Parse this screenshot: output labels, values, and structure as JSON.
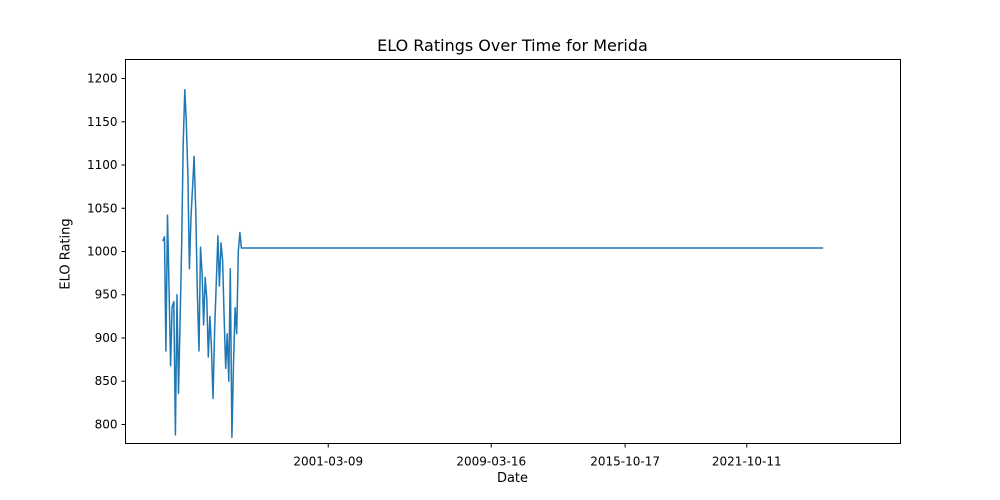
{
  "chart_data": {
    "type": "line",
    "title": "ELO Ratings Over Time for Merida",
    "xlabel": "Date",
    "ylabel": "ELO Rating",
    "x_tick_labels": [
      "2001-03-09",
      "2009-03-16",
      "2015-10-17",
      "2021-10-11"
    ],
    "y_ticks": [
      800,
      850,
      900,
      950,
      1000,
      1050,
      1100,
      1150,
      1200
    ],
    "xlim": [
      "1991-03-19",
      "2029-05-04"
    ],
    "ylim": [
      778,
      1222
    ],
    "grid": false,
    "legend": "none",
    "colors": {
      "line": "#1f77b4",
      "axes": "#000000",
      "background": "#ffffff"
    },
    "series": [
      {
        "x": [
          "1993-01-18",
          "1993-02-16",
          "1993-03-14",
          "1993-04-11",
          "1993-05-09",
          "1993-06-06",
          "1993-07-04",
          "1993-08-03",
          "1993-09-01",
          "1993-09-29",
          "1993-10-27",
          "1993-11-24",
          "1993-12-22",
          "1994-01-19",
          "1994-02-16",
          "1994-03-16",
          "1994-04-13",
          "1994-05-11",
          "1994-06-08",
          "1994-07-06",
          "1994-08-03",
          "1994-09-02",
          "1994-10-01",
          "1994-10-29",
          "1994-11-26",
          "1994-12-24",
          "1995-01-21",
          "1995-02-18",
          "1995-03-18",
          "1995-04-15",
          "1995-05-13",
          "1995-06-10",
          "1995-07-08",
          "1995-08-07",
          "1995-09-06",
          "1995-10-04",
          "1995-11-01",
          "1995-11-29",
          "1995-12-27",
          "1996-01-24",
          "1996-02-21",
          "1996-03-20",
          "1996-04-17",
          "1996-05-15",
          "1996-06-12",
          "1996-07-10",
          "1996-08-08",
          "1996-09-07",
          "1996-10-05",
          "1996-11-02",
          "1996-11-30",
          "1996-12-28",
          "1997-01-25",
          "1997-02-22",
          "1997-03-22",
          "1997-04-19",
          "1997-05-17",
          "1997-06-14",
          "1997-07-13",
          "1997-08-11",
          "1997-09-09",
          "1997-10-07",
          "1997-11-04",
          "1997-12-02",
          "1997-12-30",
          "1998-01-27",
          "1998-02-24",
          "1998-03-24",
          "1998-04-21",
          "1998-05-19",
          "1998-06-16",
          "1998-07-15",
          "1998-08-14",
          "1998-09-12",
          "1998-10-10",
          "1998-11-07",
          "1998-12-05",
          "1999-01-02",
          "1999-01-30",
          "1999-02-27",
          "1999-03-27",
          "1999-04-24",
          "1999-05-22",
          "1999-06-19",
          "1999-07-18",
          "1999-08-17",
          "1999-09-15",
          "1999-10-13",
          "1999-11-10",
          "1999-12-08",
          "2000-01-05",
          "2000-02-02",
          "2000-03-01",
          "2000-03-29",
          "2000-04-26",
          "2000-05-24",
          "2000-06-22",
          "2000-07-21",
          "2000-08-19",
          "2000-09-16",
          "2000-10-14",
          "2000-11-11",
          "2025-07-15"
        ],
        "y": [
          1012,
          1017,
          885,
          1042,
          960,
          868,
          936,
          942,
          788,
          950,
          836,
          920,
          1010,
          1125,
          1187,
          1150,
          1088,
          980,
          1040,
          1075,
          1110,
          1045,
          950,
          885,
          1005,
          975,
          915,
          970,
          945,
          878,
          925,
          890,
          830,
          912,
          965,
          1018,
          960,
          1010,
          990,
          925,
          865,
          905,
          850,
          980,
          785,
          870,
          935,
          905,
          1000,
          1022,
          1004,
          1004,
          1004,
          1004,
          1004,
          1004,
          1004,
          1004,
          1004,
          1004,
          1004,
          1004,
          1004,
          1004,
          1004,
          1004,
          1004,
          1004,
          1004,
          1004,
          1004,
          1004,
          1004,
          1004,
          1004,
          1004,
          1004,
          1004,
          1004,
          1004,
          1004,
          1004,
          1004,
          1004,
          1004,
          1004,
          1004,
          1004,
          1004,
          1004,
          1004,
          1004,
          1004,
          1004,
          1004,
          1004,
          1004,
          1004,
          1004,
          1004,
          1004,
          1004,
          1004
        ]
      }
    ]
  }
}
